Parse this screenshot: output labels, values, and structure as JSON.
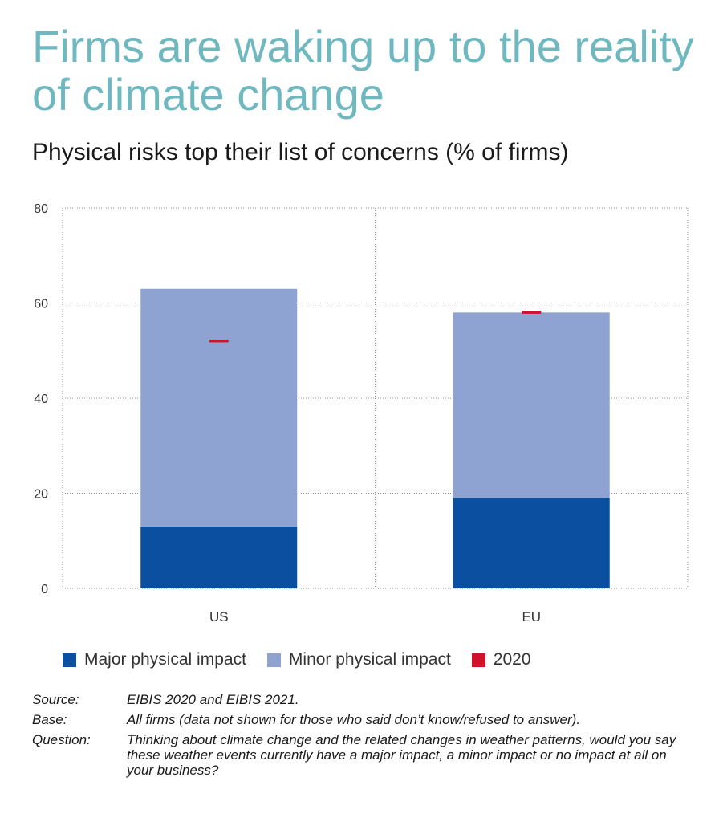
{
  "header": {
    "title": "Firms are waking up to the reality of climate change",
    "subtitle": "Physical risks top their list of concerns (% of firms)"
  },
  "colors": {
    "major": "#0a4fa0",
    "minor": "#8fa3d3",
    "marker": "#d0112b",
    "title": "#6fb8c0"
  },
  "chart_data": {
    "type": "bar",
    "stacked": true,
    "title": "Physical risks top their list of concerns (% of firms)",
    "categories": [
      "US",
      "EU"
    ],
    "series": [
      {
        "name": "Major physical impact",
        "values": [
          13,
          19
        ]
      },
      {
        "name": "Minor physical impact",
        "values": [
          50,
          39
        ]
      }
    ],
    "markers": {
      "name": "2020",
      "values": [
        52,
        58
      ]
    },
    "ylim": [
      0,
      80
    ],
    "yticks": [
      0,
      20,
      40,
      60,
      80
    ],
    "grid": true,
    "xlabel": "",
    "ylabel": "",
    "legend_position": "bottom"
  },
  "legend": [
    {
      "label": "Major physical impact",
      "color": "#0a4fa0"
    },
    {
      "label": "Minor physical impact",
      "color": "#8fa3d3"
    },
    {
      "label": "2020",
      "color": "#d0112b"
    }
  ],
  "notes": [
    {
      "label": "Source:",
      "text": "EIBIS 2020 and EIBIS 2021."
    },
    {
      "label": "Base:",
      "text": "All firms (data not shown for those who said don’t know/refused to answer)."
    },
    {
      "label": "Question:",
      "text": "Thinking about climate change and the related changes in weather patterns, would you say these weather events currently have a major impact, a minor impact or no impact at all on your business?"
    }
  ]
}
